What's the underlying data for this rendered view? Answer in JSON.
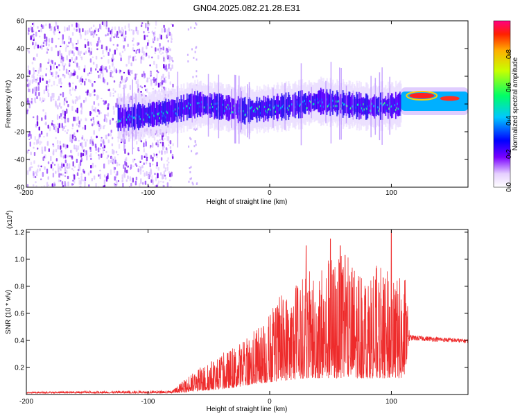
{
  "title": "GN04.2025.082.21.28.E31",
  "chart_data": [
    {
      "type": "heatmap",
      "name": "spectrogram",
      "xlabel": "Height of straight line (km)",
      "ylabel": "Frequency (Hz)",
      "xlim": [
        -200,
        163
      ],
      "ylim": [
        -60,
        60
      ],
      "xticks": [
        -200,
        -100,
        0,
        100
      ],
      "yticks": [
        -60,
        -40,
        -20,
        0,
        20,
        40,
        60
      ],
      "noise_region_x": [
        -200,
        -80
      ],
      "signal_band_center_hz": [
        {
          "x": -120,
          "y": -10
        },
        {
          "x": -100,
          "y": -8
        },
        {
          "x": -80,
          "y": -5
        },
        {
          "x": -60,
          "y": 0
        },
        {
          "x": -40,
          "y": -2
        },
        {
          "x": -20,
          "y": -5
        },
        {
          "x": 0,
          "y": -3
        },
        {
          "x": 20,
          "y": -1
        },
        {
          "x": 40,
          "y": 2
        },
        {
          "x": 60,
          "y": 0
        },
        {
          "x": 80,
          "y": -2
        },
        {
          "x": 105,
          "y": -1
        },
        {
          "x": 115,
          "y": 6
        },
        {
          "x": 163,
          "y": 3
        }
      ],
      "colorbar": {
        "label": "Normalized spectral amplitude",
        "range": [
          0.0,
          1.0
        ],
        "ticks": [
          "0.0",
          "0.2",
          "0.4",
          "0.6",
          "0.8"
        ]
      }
    },
    {
      "type": "line",
      "name": "snr",
      "xlabel": "Height of straight line (km)",
      "ylabel": "SNR (10 * v/v)",
      "multiplier_label": "(x10",
      "multiplier_exp": "4",
      "xlim": [
        -200,
        163
      ],
      "ylim": [
        0,
        1.22
      ],
      "xticks": [
        -200,
        -100,
        0,
        100
      ],
      "yticks": [
        "0.2",
        "0.4",
        "0.6",
        "0.8",
        "1.0",
        "1.2"
      ],
      "color": "#ee2b2b",
      "envelope": [
        {
          "x": -200,
          "low": 0.01,
          "high": 0.02
        },
        {
          "x": -100,
          "low": 0.01,
          "high": 0.03
        },
        {
          "x": -80,
          "low": 0.01,
          "high": 0.03
        },
        {
          "x": -65,
          "low": 0.02,
          "high": 0.15
        },
        {
          "x": -50,
          "low": 0.03,
          "high": 0.25
        },
        {
          "x": -30,
          "low": 0.05,
          "high": 0.35
        },
        {
          "x": -10,
          "low": 0.08,
          "high": 0.5
        },
        {
          "x": 10,
          "low": 0.1,
          "high": 0.75
        },
        {
          "x": 30,
          "low": 0.12,
          "high": 0.9
        },
        {
          "x": 50,
          "low": 0.12,
          "high": 1.05
        },
        {
          "x": 70,
          "low": 0.12,
          "high": 1.0
        },
        {
          "x": 90,
          "low": 0.12,
          "high": 0.95
        },
        {
          "x": 112,
          "low": 0.12,
          "high": 0.85
        },
        {
          "x": 115,
          "low": 0.4,
          "high": 0.44
        },
        {
          "x": 163,
          "low": 0.38,
          "high": 0.41
        }
      ],
      "peaks": [
        {
          "x": 30,
          "y": 1.1
        },
        {
          "x": 50,
          "y": 1.15
        },
        {
          "x": 58,
          "y": 1.1
        },
        {
          "x": 62,
          "y": 1.03
        },
        {
          "x": 100,
          "y": 1.22
        }
      ]
    }
  ]
}
